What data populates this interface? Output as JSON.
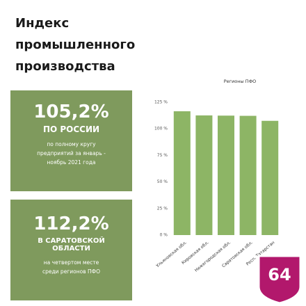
{
  "chart_data": {
    "type": "bar",
    "title": "Индекс промышленного производства",
    "categories": [
      "Ульяновская обл.",
      "Кировская обл.",
      "Нижегородская обл.",
      "Саратовская обл.",
      "Респ. Татарстан"
    ],
    "series": [
      {
        "name": "Регионы ПФО",
        "color": "#8db565",
        "values": [
          116.5,
          112.6,
          112.4,
          112.2,
          107.5
        ]
      }
    ],
    "ylim": [
      0,
      125
    ],
    "yticks": [
      {
        "value": 0,
        "label": "0 %"
      },
      {
        "value": 25,
        "label": "25 %"
      },
      {
        "value": 50,
        "label": "50 %"
      },
      {
        "value": 75,
        "label": "75 %"
      },
      {
        "value": 100,
        "label": "100 %"
      },
      {
        "value": 125,
        "label": "125 %"
      }
    ],
    "grid": false
  },
  "panels": [
    {
      "value": "105,2%",
      "label": "ПО РОССИИ",
      "note": "по полному кругу предприятий за январь - ноябрь 2021 года"
    },
    {
      "value": "112,2%",
      "label": "В САРАТОВСКОЙ ОБЛАСТИ",
      "note": "на четвертом месте среди регионов ПФО"
    }
  ],
  "badge": "64"
}
